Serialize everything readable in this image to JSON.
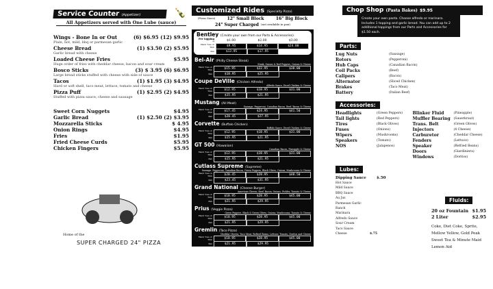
{
  "service": {
    "title": "Service Counter",
    "title_note": "(Appetizer)",
    "subtitle": "All Appetizers served with One Lube (sauce)",
    "items": [
      {
        "name": "Wings - Bone In  or Out",
        "price": "(6) $6.95 (12) $9.95",
        "desc": "Plain, hot, mild, bbq or parmesan garlic"
      },
      {
        "name": "Cheese Bread",
        "price": "(1) $3.50 (2)   $5.95",
        "desc": "Garlic bread with cheese"
      },
      {
        "name": "Loaded Cheese Fries",
        "price": "$5.95",
        "desc": "Huge order of fries with cheddar cheese, bacon and sour cream"
      },
      {
        "name": "Bosco Sticks",
        "price": "(3) $ 3.95 (6) $6.95",
        "desc": "Large bread sticks stuffed with cheese with side of sauce"
      },
      {
        "name": "Tacos",
        "price": "(1) $1.95 (3) $4.95",
        "desc": "Hard or soft shell, taco meat, lettuce, tomato and cheese"
      },
      {
        "name": "Pizza Puff",
        "price": "(1) $2.95  (2) $4.95",
        "desc": "Stuffed with pizza sauce, cheese and sausage"
      }
    ],
    "items2": [
      {
        "name": "Sweet Corn Nuggets",
        "price": "$4.95"
      },
      {
        "name": "Garlic Bread",
        "price": "(1) $2.50  (2) $3.95"
      },
      {
        "name": "Mozzarella Sticks",
        "price": "$ 4.95"
      },
      {
        "name": "Onion Rings",
        "price": "$4.95"
      },
      {
        "name": "Fries",
        "price": "$1.95"
      },
      {
        "name": "Fried Cheese Curds",
        "price": "$5.95"
      },
      {
        "name": "Chicken Fingers",
        "price": "$5.95"
      }
    ],
    "home": "Home of the",
    "slogan": "SUPER CHARGED 24\" PIZZA"
  },
  "rides": {
    "title": "Customized Rides",
    "title_note": "(Specialty Pizza)",
    "size_label": "(Pizza Sizes)",
    "small": "12\" Small Block",
    "big": "16\" Big Block",
    "super": "24\" Super Charged",
    "super_note": "(not available in pan)",
    "per_topping": "Per topping →",
    "topping_prices": [
      "$1.00",
      "$2.00",
      "$3.00"
    ],
    "row1": "Hand Toss or Thin",
    "row2": "Pan",
    "pizzas": [
      {
        "name": "Bentley",
        "sub": "(Create your own from our Parts & Accessories)",
        "toppings": "",
        "p1": [
          "$9.95",
          "$14.95",
          "$24.00"
        ],
        "p2": [
          "$13.95",
          "$17.95"
        ]
      },
      {
        "name": "Bel-Air",
        "sub": "(Philly Cheese Steak)",
        "toppings": "Steak, Onions & Red Peppers, Onions & Cheese",
        "p1": [
          "$15.95",
          "$22.95",
          "$38.00"
        ],
        "p2": [
          "$18.95",
          "$25.95"
        ]
      },
      {
        "name": "Coupe DeVille",
        "sub": "(Chicken Alfredo)",
        "toppings": "Alfredo Sauce, Diced Chicken & Cheese",
        "p1": [
          "$12.95",
          "$18.95",
          "$31.00"
        ],
        "p2": [
          "$15.95",
          "$21.95"
        ]
      },
      {
        "name": "Mustang",
        "sub": "(All Meat)",
        "toppings": "Sausage, Pepperoni, Canadian Bacon, Beef, Bacon & Cheese",
        "p1": [
          "$17.45",
          "$24.95",
          "$41.50"
        ],
        "p2": [
          "$20.45",
          "$27.95"
        ]
      },
      {
        "name": "Corvette",
        "sub": "(Buffalo Chicken)",
        "toppings": "Buffalo Sauce, Diced Chicken & Cheese",
        "p1": [
          "$12.95",
          "$18.95",
          "$31.00"
        ],
        "p2": [
          "$15.95",
          "$21.95"
        ]
      },
      {
        "name": "GT 500",
        "sub": "(Hawaiian)",
        "toppings": "Canadian Bacon, Pineapple & Cheese",
        "p1": [
          "$12.95",
          "$18.95",
          "$31.00"
        ],
        "p2": [
          "$15.95",
          "$21.95"
        ]
      },
      {
        "name": "Cutlass Supreme",
        "sub": "(Supreme)",
        "toppings": "Sausage, Pepperoni, Canadian Bacon, Green Peppers, Black Olives, Onions, Mushrooms & Cheese",
        "p1": [
          "$20.45",
          "$28.95",
          "$48.50"
        ],
        "p2": [
          "$23.45",
          "$31.95"
        ]
      },
      {
        "name": "Grand National",
        "sub": "(Cheese Burger)",
        "toppings": "American Cheese, Beef, Bacon, Onions, Pickles, Tomato & Cheese",
        "p1": [
          "$18.95",
          "$28.95",
          "$45.00"
        ],
        "p2": [
          "$21.95",
          "$29.95"
        ]
      },
      {
        "name": "Prius",
        "sub": "(Veggie Pizza)",
        "toppings": "Green Peppers, Black & Green Olives, Onions, Mushrooms, Tomato & Cheese",
        "p1": [
          "$18.95",
          "$28.95",
          "$45.00"
        ],
        "p2": [
          "$21.95",
          "$29.95"
        ]
      },
      {
        "name": "Gremlin",
        "sub": "(Taco Pizza)",
        "toppings": "Cheddar Cheese, Taco Meat, Refried Beans, Lettuce, Tomato, Doritos and Cheese",
        "p1": [
          "$18.95",
          "$28.95",
          "$45.00"
        ],
        "p2": [
          "$21.95",
          "$29.95"
        ]
      }
    ]
  },
  "chop": {
    "title": "Chop Shop",
    "sub": "(Pasta Bakes)",
    "price": "$9.95",
    "desc": "Create your own pasta. Choose alfredo or marinara. Includes 1 topping and garlic bread. You can add up to 2 additional toppings from our Parts and Accessories for $1.50 each."
  },
  "parts": {
    "title": "Parts:",
    "items": [
      [
        "Lug Nuts",
        "(Sausage)"
      ],
      [
        "Rotors",
        "(Pepperoni)"
      ],
      [
        "Hub Caps",
        "(Canadian Bacon)"
      ],
      [
        "Coil Packs",
        "(Beef)"
      ],
      [
        "Calipers",
        "(Bacon)"
      ],
      [
        "Alternator",
        "(Sliced Chicken)"
      ],
      [
        "Brakes",
        "(Taco Meat)"
      ],
      [
        "Battery",
        "(Italian Beef)"
      ]
    ]
  },
  "accessories": {
    "title": "Accessories:",
    "col1": [
      [
        "Headlights",
        "(Green Peppers)"
      ],
      [
        "Tail lights",
        "(Red Peppers)"
      ],
      [
        "Tires",
        "(Black Olives)"
      ],
      [
        "Fuses",
        "(Onions)"
      ],
      [
        "Wipers",
        "(Mushrooms)"
      ],
      [
        "Speakers",
        "(Tomato)"
      ],
      [
        "NOS",
        "(Jalapenos)"
      ]
    ],
    "col2": [
      [
        "Blinker Fluid",
        "(Pineapple)"
      ],
      [
        "Muffler Bearing",
        "(Sauerkraut)"
      ],
      [
        "Trans. Belt",
        "(Green Olives)"
      ],
      [
        "Injectors",
        "(4 Cheese)"
      ],
      [
        "Carburetor",
        "(Cheddar Cheese)"
      ],
      [
        "Fenders",
        "(Lettuce)"
      ],
      [
        "Speaker",
        "(Refried Beans)"
      ],
      [
        "Doors",
        "(Giardiniera)"
      ],
      [
        "Windows",
        "(Doritos)"
      ]
    ]
  },
  "lubes": {
    "title": "Lubes:",
    "head": "Dipping Sauce",
    "head_price": "$.50",
    "items": [
      "Hot Sauce",
      "Mild Sauce",
      "BBQ Sauce",
      "Au Jus",
      "Parmesan Garlic",
      "Ranch",
      "Marinara",
      "Alfredo Sauce",
      "Sour Cream",
      "Taco Sauce"
    ],
    "last": "Cheese",
    "last_price": "$.75"
  },
  "fluids": {
    "title": "Fluids:",
    "items": [
      {
        "name": "20 oz Fountain",
        "price": "$1.95"
      },
      {
        "name": "2 Liter",
        "price": "$2.95"
      }
    ],
    "drinks": [
      "Coke, Diet Coke, Sprite,",
      "Mellow Yellow, Gold Peak",
      "Sweet Tea & Minute Maid",
      "Lemon Aid"
    ]
  }
}
